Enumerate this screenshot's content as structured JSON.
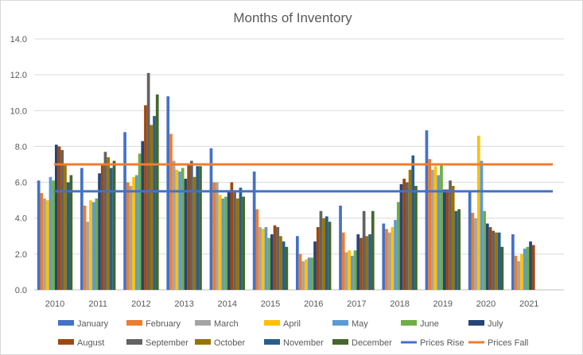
{
  "chart_data": {
    "type": "bar",
    "title": "Months of Inventory",
    "xlabel": "",
    "ylabel": "",
    "ylim": [
      0,
      14
    ],
    "yticks": [
      "0.0",
      "2.0",
      "4.0",
      "6.0",
      "8.0",
      "10.0",
      "12.0",
      "14.0"
    ],
    "grid": true,
    "legend_position": "bottom",
    "categories": [
      "2010",
      "2011",
      "2012",
      "2013",
      "2014",
      "2015",
      "2016",
      "2017",
      "2018",
      "2019",
      "2020",
      "2021"
    ],
    "series": [
      {
        "name": "January",
        "color": "#4472c4",
        "values": [
          6.1,
          6.8,
          8.8,
          10.8,
          7.9,
          6.6,
          3.0,
          4.7,
          3.7,
          8.9,
          5.5,
          3.1
        ]
      },
      {
        "name": "February",
        "color": "#ed7d31",
        "values": [
          5.4,
          4.7,
          6.0,
          8.7,
          6.0,
          4.5,
          2.0,
          3.2,
          3.4,
          7.3,
          4.3,
          1.9
        ]
      },
      {
        "name": "March",
        "color": "#a5a5a5",
        "values": [
          5.1,
          3.8,
          5.8,
          7.2,
          6.0,
          3.5,
          1.6,
          2.1,
          3.2,
          6.7,
          4.0,
          1.6
        ]
      },
      {
        "name": "April",
        "color": "#ffc000",
        "values": [
          5.0,
          5.0,
          6.3,
          6.7,
          5.3,
          3.4,
          1.7,
          2.2,
          3.5,
          6.9,
          8.6,
          2.0
        ]
      },
      {
        "name": "May",
        "color": "#5b9bd5",
        "values": [
          6.3,
          4.9,
          6.4,
          6.6,
          5.1,
          3.5,
          1.8,
          1.9,
          3.9,
          6.4,
          7.2,
          2.3
        ]
      },
      {
        "name": "June",
        "color": "#70ad47",
        "values": [
          6.1,
          5.1,
          7.6,
          6.8,
          5.2,
          2.9,
          1.8,
          2.2,
          4.9,
          7.0,
          4.4,
          2.4
        ]
      },
      {
        "name": "July",
        "color": "#264478",
        "values": [
          8.1,
          6.5,
          8.3,
          6.2,
          5.5,
          3.1,
          2.7,
          3.1,
          5.9,
          5.6,
          3.7,
          2.7
        ]
      },
      {
        "name": "August",
        "color": "#9e480e",
        "values": [
          8.0,
          7.0,
          10.3,
          7.0,
          6.0,
          3.6,
          3.5,
          2.9,
          6.2,
          5.6,
          3.5,
          2.5
        ]
      },
      {
        "name": "September",
        "color": "#636363",
        "values": [
          7.8,
          7.7,
          12.1,
          7.2,
          5.5,
          3.5,
          4.4,
          4.4,
          6.0,
          6.1,
          3.3,
          null
        ]
      },
      {
        "name": "October",
        "color": "#997300",
        "values": [
          7.0,
          7.4,
          9.2,
          6.3,
          5.1,
          3.0,
          4.0,
          3.0,
          6.7,
          5.8,
          3.2,
          null
        ]
      },
      {
        "name": "November",
        "color": "#255e91",
        "values": [
          6.0,
          6.8,
          9.7,
          6.9,
          5.7,
          2.7,
          4.1,
          3.1,
          7.5,
          4.4,
          3.2,
          null
        ]
      },
      {
        "name": "December",
        "color": "#43682b",
        "values": [
          6.4,
          7.2,
          10.9,
          6.9,
          5.2,
          2.4,
          3.8,
          4.4,
          5.8,
          4.5,
          2.4,
          null
        ]
      }
    ],
    "reference_lines": [
      {
        "name": "Prices Rise",
        "color": "#4472c4",
        "value": 5.5
      },
      {
        "name": "Prices Fall",
        "color": "#ed7d31",
        "value": 7.0
      }
    ]
  }
}
